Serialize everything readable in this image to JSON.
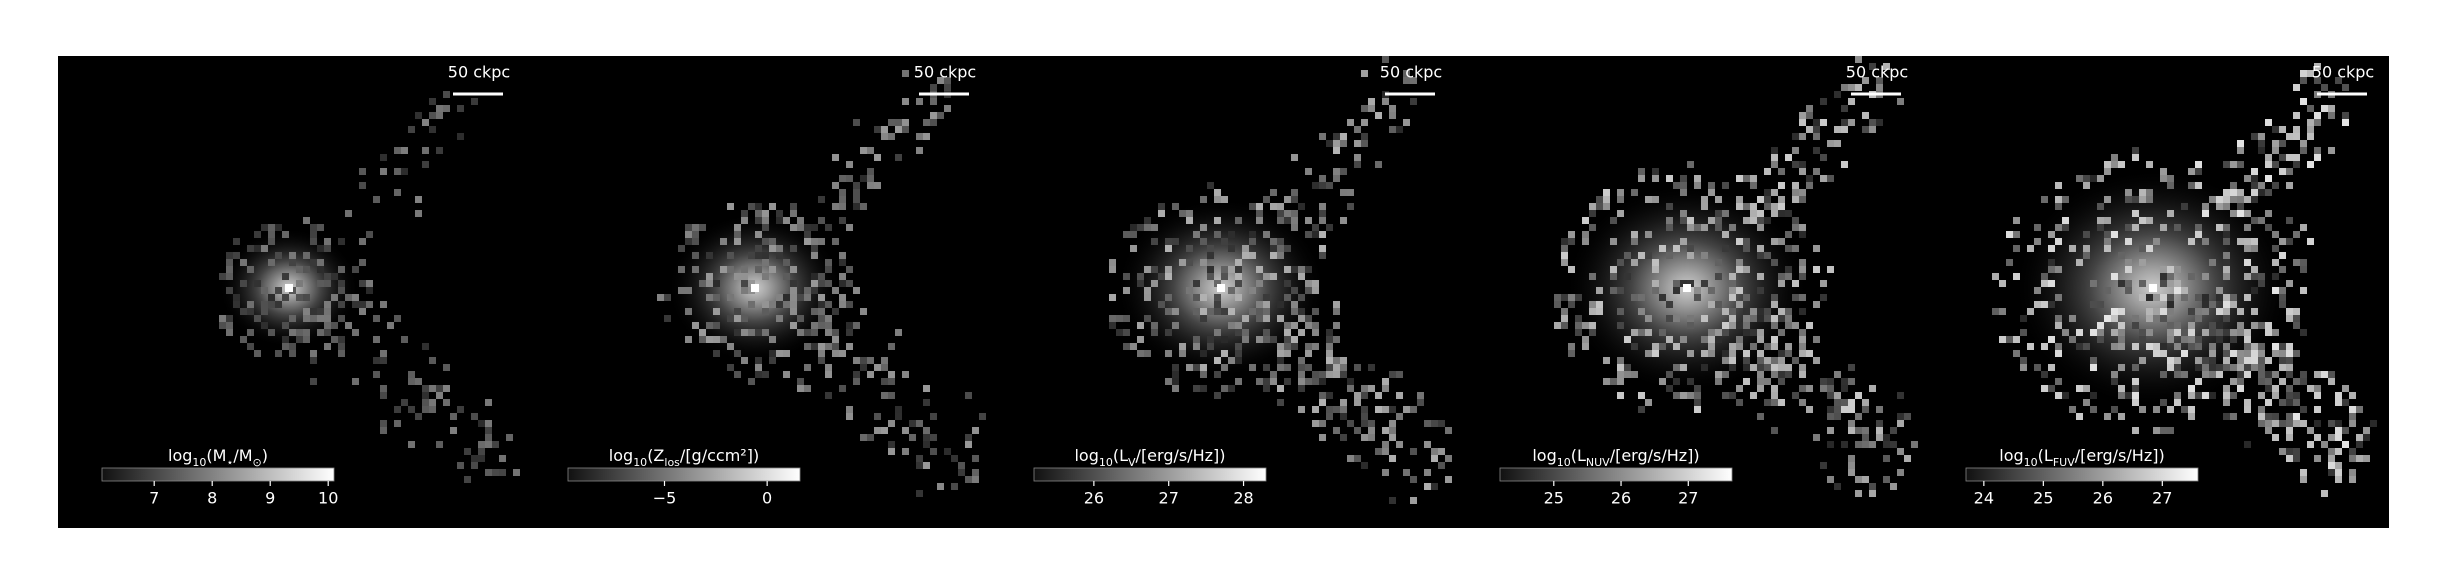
{
  "chart_data": [
    {
      "type": "image",
      "scale_label": "50 ckpc",
      "colorbar_label": [
        "log",
        "10",
        "(M",
        "⋆",
        "/M",
        "⊙",
        ")"
      ],
      "clim": [
        6.1,
        10.1
      ],
      "cticks": [
        7,
        8,
        9,
        10
      ]
    },
    {
      "type": "image",
      "scale_label": "50 ckpc",
      "colorbar_label": [
        "log",
        "10",
        "(Z",
        "los",
        "/[g/ccm²])"
      ],
      "clim": [
        -9.7,
        1.6
      ],
      "cticks": [
        {
          "value": -5,
          "label": "−5"
        },
        0
      ]
    },
    {
      "type": "image",
      "scale_label": "50 ckpc",
      "colorbar_label": [
        "log",
        "10",
        "(L",
        "V",
        "/[erg/s/Hz])"
      ],
      "clim": [
        25.2,
        28.3
      ],
      "cticks": [
        26,
        27,
        28
      ]
    },
    {
      "type": "image",
      "scale_label": "50 ckpc",
      "colorbar_label": [
        "log",
        "10",
        "(L",
        "NUV",
        "/[erg/s/Hz])"
      ],
      "clim": [
        24.2,
        27.65
      ],
      "cticks": [
        25,
        26,
        27
      ]
    },
    {
      "type": "image",
      "scale_label": "50 ckpc",
      "colorbar_label": [
        "log",
        "10",
        "(L",
        "FUV",
        "/[erg/s/Hz])"
      ],
      "clim": [
        23.7,
        27.6
      ],
      "cticks": [
        24,
        25,
        26,
        27
      ]
    }
  ]
}
